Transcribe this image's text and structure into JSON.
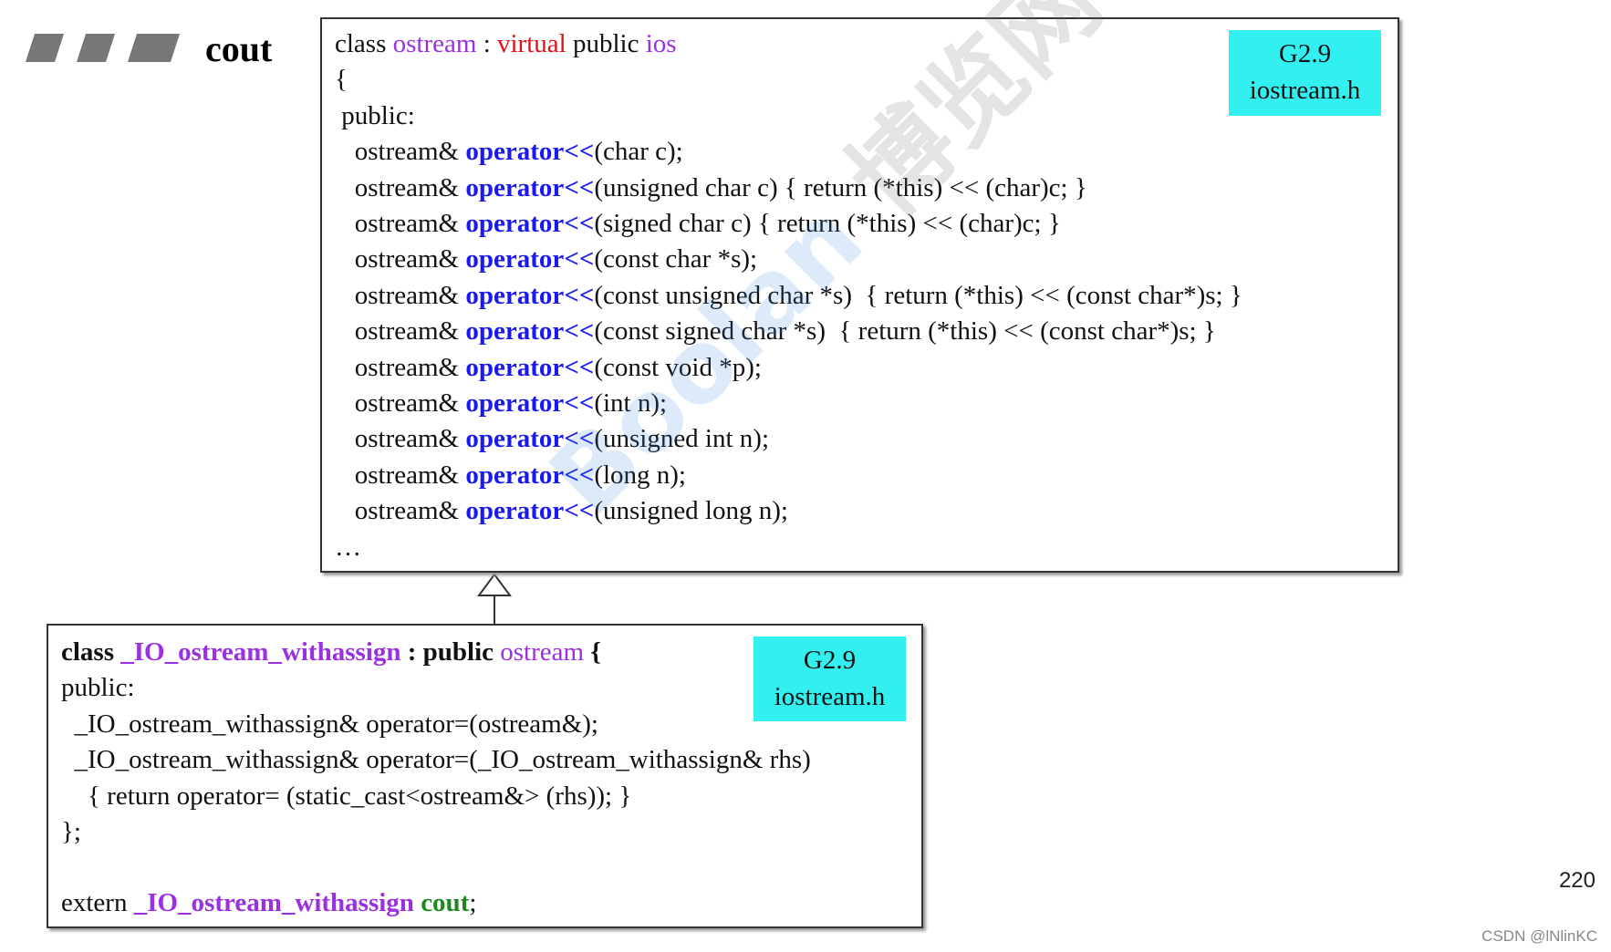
{
  "header": {
    "title": "cout"
  },
  "box1": {
    "tag": [
      "G2.9",
      "iostream.h"
    ],
    "lines": [
      [
        {
          "t": "class "
        },
        {
          "t": "ostream",
          "s": "type"
        },
        {
          "t": " : "
        },
        {
          "t": "virtual",
          "s": "red"
        },
        {
          "t": " public "
        },
        {
          "t": "ios",
          "s": "type"
        }
      ],
      [
        {
          "t": "{"
        }
      ],
      [
        {
          "t": " public:"
        }
      ],
      [
        {
          "t": "   ostream& "
        },
        {
          "t": "operator<<",
          "s": "kw"
        },
        {
          "t": "(char c);"
        }
      ],
      [
        {
          "t": "   ostream& "
        },
        {
          "t": "operator<<",
          "s": "kw"
        },
        {
          "t": "(unsigned char c) { return (*this) << (char)c; }"
        }
      ],
      [
        {
          "t": "   ostream& "
        },
        {
          "t": "operator<<",
          "s": "kw"
        },
        {
          "t": "(signed char c) { return (*this) << (char)c; }"
        }
      ],
      [
        {
          "t": "   ostream& "
        },
        {
          "t": "operator<<",
          "s": "kw"
        },
        {
          "t": "(const char *s);"
        }
      ],
      [
        {
          "t": "   ostream& "
        },
        {
          "t": "operator<<",
          "s": "kw"
        },
        {
          "t": "(const unsigned char *s)  { return (*this) << (const char*)s; }"
        }
      ],
      [
        {
          "t": "   ostream& "
        },
        {
          "t": "operator<<",
          "s": "kw"
        },
        {
          "t": "(const signed char *s)  { return (*this) << (const char*)s; }"
        }
      ],
      [
        {
          "t": "   ostream& "
        },
        {
          "t": "operator<<",
          "s": "kw"
        },
        {
          "t": "(const void *p);"
        }
      ],
      [
        {
          "t": "   ostream& "
        },
        {
          "t": "operator<<",
          "s": "kw"
        },
        {
          "t": "(int n);"
        }
      ],
      [
        {
          "t": "   ostream& "
        },
        {
          "t": "operator<<",
          "s": "kw"
        },
        {
          "t": "(unsigned int n);"
        }
      ],
      [
        {
          "t": "   ostream& "
        },
        {
          "t": "operator<<",
          "s": "kw"
        },
        {
          "t": "(long n);"
        }
      ],
      [
        {
          "t": "   ostream& "
        },
        {
          "t": "operator<<",
          "s": "kw"
        },
        {
          "t": "(unsigned long n);"
        }
      ],
      [
        {
          "t": "…"
        }
      ]
    ]
  },
  "box2": {
    "tag": [
      "G2.9",
      "iostream.h"
    ],
    "lines": [
      [
        {
          "t": "class ",
          "s": "b"
        },
        {
          "t": "_IO_ostream_withassign",
          "s": "btype"
        },
        {
          "t": " : public ",
          "s": "b"
        },
        {
          "t": "ostream",
          "s": "type"
        },
        {
          "t": " {",
          "s": "b"
        }
      ],
      [
        {
          "t": "public:"
        }
      ],
      [
        {
          "t": "  _IO_ostream_withassign& operator=(ostream&);"
        }
      ],
      [
        {
          "t": "  _IO_ostream_withassign& operator=(_IO_ostream_withassign& rhs)"
        }
      ],
      [
        {
          "t": "    { return operator= (static_cast<ostream&> (rhs)); }"
        }
      ],
      [
        {
          "t": "};"
        }
      ]
    ],
    "footer": [
      {
        "t": "extern "
      },
      {
        "t": "_IO_ostream_withassign",
        "s": "btype"
      },
      {
        "t": " "
      },
      {
        "t": "cout",
        "s": "bgreen"
      },
      {
        "t": ";"
      }
    ]
  },
  "watermark": {
    "brand": "Boolan",
    "site": "博览网"
  },
  "page_number": "220",
  "credit": "CSDN @lNlinKC"
}
